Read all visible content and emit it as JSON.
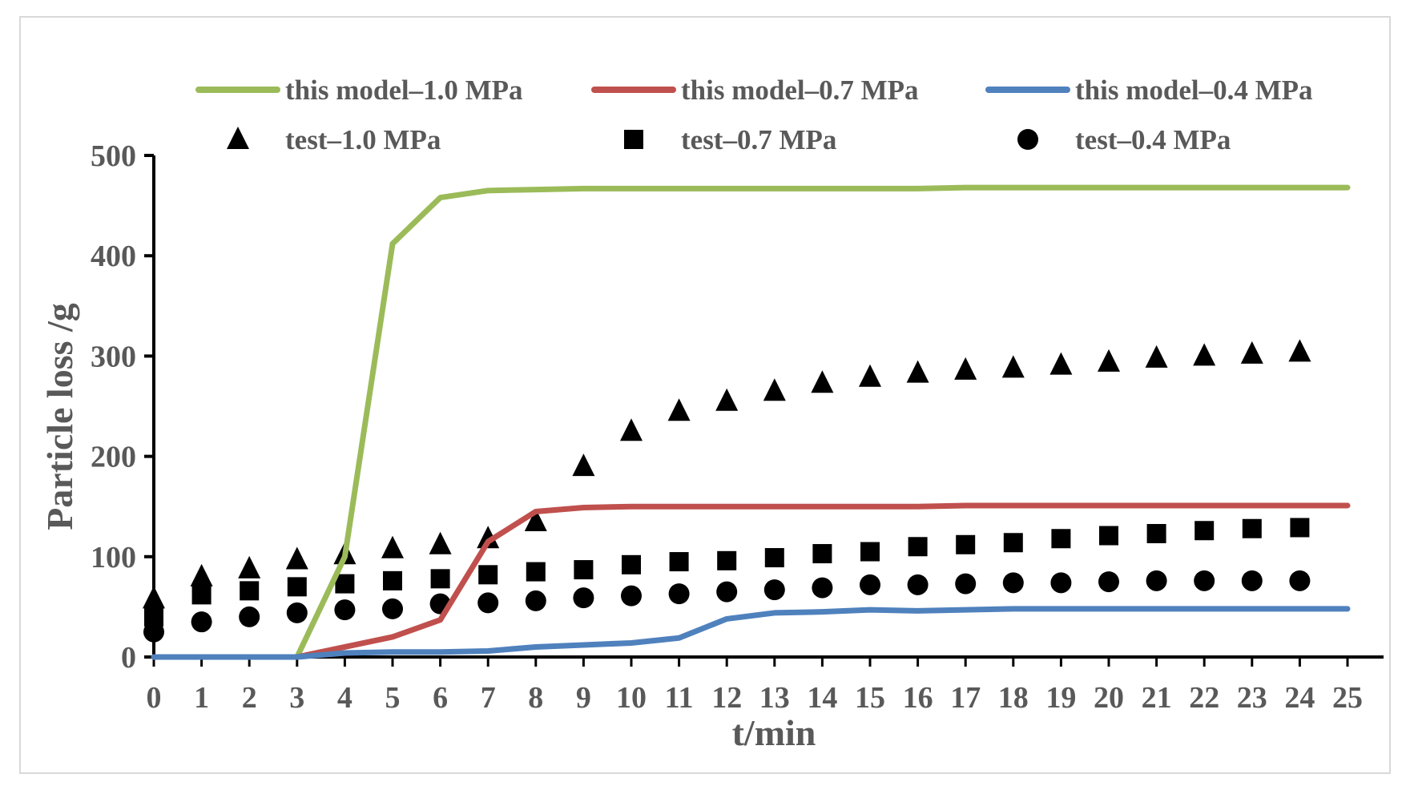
{
  "chart_data": {
    "type": "line",
    "title": "",
    "xlabel": "t/min",
    "ylabel": "Particle loss /g",
    "xlim": [
      0,
      25
    ],
    "ylim": [
      0,
      500
    ],
    "x_ticks": [
      "0",
      "1",
      "2",
      "3",
      "4",
      "5",
      "6",
      "7",
      "8",
      "9",
      "10",
      "11",
      "12",
      "13",
      "14",
      "15",
      "16",
      "17",
      "18",
      "19",
      "20",
      "21",
      "22",
      "23",
      "24",
      "25"
    ],
    "y_ticks": [
      "0",
      "100",
      "200",
      "300",
      "400",
      "500"
    ],
    "grid": false,
    "legend_position": "top",
    "series": [
      {
        "name": "this model–1.0 MPa",
        "kind": "line",
        "color": "#9bbb59",
        "x": [
          0,
          1,
          2,
          3,
          4,
          5,
          6,
          7,
          8,
          9,
          10,
          11,
          12,
          13,
          14,
          15,
          16,
          17,
          18,
          19,
          20,
          21,
          22,
          23,
          24,
          25
        ],
        "values": [
          0,
          0,
          0,
          0,
          100,
          412,
          458,
          465,
          466,
          467,
          467,
          467,
          467,
          467,
          467,
          467,
          467,
          468,
          468,
          468,
          468,
          468,
          468,
          468,
          468,
          468
        ]
      },
      {
        "name": "this model–0.7 MPa",
        "kind": "line",
        "color": "#c0504d",
        "x": [
          0,
          1,
          2,
          3,
          4,
          5,
          6,
          7,
          8,
          9,
          10,
          11,
          12,
          13,
          14,
          15,
          16,
          17,
          18,
          19,
          20,
          21,
          22,
          23,
          24,
          25
        ],
        "values": [
          0,
          0,
          0,
          0,
          10,
          20,
          37,
          115,
          145,
          149,
          150,
          150,
          150,
          150,
          150,
          150,
          150,
          151,
          151,
          151,
          151,
          151,
          151,
          151,
          151,
          151
        ]
      },
      {
        "name": "this model–0.4 MPa",
        "kind": "line",
        "color": "#4f81bd",
        "x": [
          0,
          1,
          2,
          3,
          4,
          5,
          6,
          7,
          8,
          9,
          10,
          11,
          12,
          13,
          14,
          15,
          16,
          17,
          18,
          19,
          20,
          21,
          22,
          23,
          24,
          25
        ],
        "values": [
          0,
          0,
          0,
          0,
          4,
          5,
          5,
          6,
          10,
          12,
          14,
          19,
          38,
          44,
          45,
          47,
          46,
          47,
          48,
          48,
          48,
          48,
          48,
          48,
          48,
          48
        ]
      },
      {
        "name": "test–1.0 MPa",
        "kind": "marker",
        "marker": "triangle",
        "color": "#000000",
        "x": [
          0,
          1,
          2,
          3,
          4,
          5,
          6,
          7,
          8,
          9,
          10,
          11,
          12,
          13,
          14,
          15,
          16,
          17,
          18,
          19,
          20,
          21,
          22,
          23,
          24
        ],
        "values": [
          58,
          80,
          88,
          97,
          102,
          108,
          112,
          118,
          135,
          190,
          225,
          245,
          255,
          265,
          273,
          279,
          283,
          286,
          288,
          291,
          294,
          298,
          300,
          302,
          304
        ]
      },
      {
        "name": "test–0.7 MPa",
        "kind": "marker",
        "marker": "square",
        "color": "#000000",
        "x": [
          0,
          1,
          2,
          3,
          4,
          5,
          6,
          7,
          8,
          9,
          10,
          11,
          12,
          13,
          14,
          15,
          16,
          17,
          18,
          19,
          20,
          21,
          22,
          23,
          24
        ],
        "values": [
          40,
          62,
          66,
          70,
          73,
          76,
          78,
          82,
          85,
          87,
          92,
          95,
          96,
          99,
          103,
          105,
          110,
          112,
          114,
          118,
          121,
          123,
          126,
          128,
          129
        ]
      },
      {
        "name": "test–0.4 MPa",
        "kind": "marker",
        "marker": "circle",
        "color": "#000000",
        "x": [
          0,
          1,
          2,
          3,
          4,
          5,
          6,
          7,
          8,
          9,
          10,
          11,
          12,
          13,
          14,
          15,
          16,
          17,
          18,
          19,
          20,
          21,
          22,
          23,
          24
        ],
        "values": [
          25,
          35,
          40,
          44,
          47,
          48,
          53,
          54,
          56,
          59,
          61,
          63,
          65,
          67,
          69,
          72,
          72,
          73,
          74,
          74,
          75,
          76,
          76,
          76,
          76
        ]
      }
    ]
  }
}
